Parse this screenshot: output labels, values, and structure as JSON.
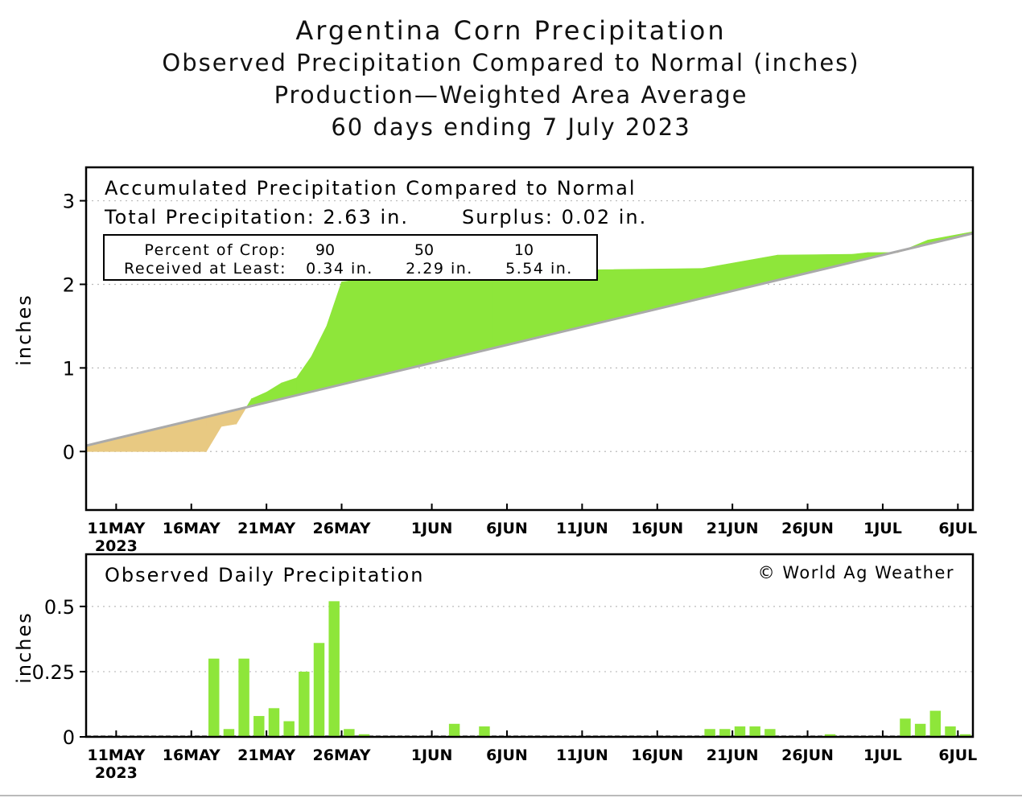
{
  "header": {
    "title": "Argentina Corn Precipitation",
    "subtitle1": "Observed Precipitation Compared to Normal (inches)",
    "subtitle2": "Production—Weighted Area Average",
    "subtitle3": "60 days ending 7 July 2023"
  },
  "colors": {
    "surplus": "#8ee63a",
    "deficit": "#e8c982",
    "normal": "#aaaaaa",
    "bar": "#8ee63a",
    "frame": "#000000"
  },
  "chart_data": [
    {
      "type": "area",
      "title": "Accumulated Precipitation Compared to Normal",
      "total_label": "Total Precipitation: 2.63 in.",
      "surplus_label": "Surplus: 0.02 in.",
      "crop_table": {
        "row1_label": "Percent of Crop:",
        "row2_label": "Received at Least:",
        "percents": [
          "90",
          "50",
          "10"
        ],
        "amounts": [
          "0.34 in.",
          "2.29 in.",
          "5.54 in."
        ]
      },
      "ylabel": "inches",
      "ylim": [
        -0.7,
        3.4
      ],
      "yticks": [
        0,
        1,
        2,
        3
      ],
      "xlim": [
        "2023-05-09",
        "2023-07-07"
      ],
      "xtick_labels": [
        "11MAY",
        "16MAY",
        "21MAY",
        "26MAY",
        "1JUN",
        "6JUN",
        "11JUN",
        "16JUN",
        "21JUN",
        "26JUN",
        "1JUL",
        "6JUL"
      ],
      "xtick_dates": [
        "2023-05-11",
        "2023-05-16",
        "2023-05-21",
        "2023-05-26",
        "2023-06-01",
        "2023-06-06",
        "2023-06-11",
        "2023-06-16",
        "2023-06-21",
        "2023-06-26",
        "2023-07-01",
        "2023-07-06"
      ],
      "year_label": "2023",
      "series": [
        {
          "x": [
            "2023-05-09",
            "2023-05-17",
            "2023-05-18",
            "2023-05-19",
            "2023-05-20",
            "2023-05-21",
            "2023-05-22",
            "2023-05-23",
            "2023-05-24",
            "2023-05-25",
            "2023-05-26",
            "2023-05-27",
            "2023-06-03",
            "2023-06-04",
            "2023-06-05",
            "2023-06-19",
            "2023-06-24",
            "2023-06-29",
            "2023-06-30",
            "2023-07-02",
            "2023-07-04",
            "2023-07-07"
          ],
          "values": [
            0.0,
            0.0,
            0.3,
            0.33,
            0.63,
            0.71,
            0.82,
            0.88,
            1.14,
            1.5,
            2.03,
            2.05,
            2.07,
            2.12,
            2.16,
            2.19,
            2.35,
            2.36,
            2.38,
            2.38,
            2.53,
            2.63
          ]
        },
        {
          "x": [
            "2023-05-09",
            "2023-07-07"
          ],
          "values": [
            0.07,
            2.61
          ]
        }
      ]
    },
    {
      "type": "bar",
      "title": "Observed Daily Precipitation",
      "credit": "© World Ag Weather",
      "ylabel": "inches",
      "ylim": [
        0,
        0.7
      ],
      "yticks": [
        0,
        0.25,
        0.5
      ],
      "ytick_labels": [
        "0",
        "0.25",
        "0.5"
      ],
      "xtick_labels": [
        "11MAY",
        "16MAY",
        "21MAY",
        "26MAY",
        "1JUN",
        "6JUN",
        "11JUN",
        "16JUN",
        "21JUN",
        "26JUN",
        "1JUL",
        "6JUL"
      ],
      "year_label": "2023",
      "dates": [
        "2023-05-18",
        "2023-05-19",
        "2023-05-20",
        "2023-05-21",
        "2023-05-22",
        "2023-05-23",
        "2023-05-24",
        "2023-05-25",
        "2023-05-26",
        "2023-05-27",
        "2023-05-28",
        "2023-06-03",
        "2023-06-05",
        "2023-06-20",
        "2023-06-21",
        "2023-06-22",
        "2023-06-23",
        "2023-06-24",
        "2023-06-28",
        "2023-07-03",
        "2023-07-04",
        "2023-07-05",
        "2023-07-06",
        "2023-07-07"
      ],
      "values": [
        0.3,
        0.03,
        0.3,
        0.08,
        0.11,
        0.06,
        0.25,
        0.36,
        0.52,
        0.03,
        0.01,
        0.05,
        0.04,
        0.03,
        0.03,
        0.04,
        0.04,
        0.03,
        0.01,
        0.07,
        0.05,
        0.1,
        0.04,
        0.01
      ]
    }
  ]
}
